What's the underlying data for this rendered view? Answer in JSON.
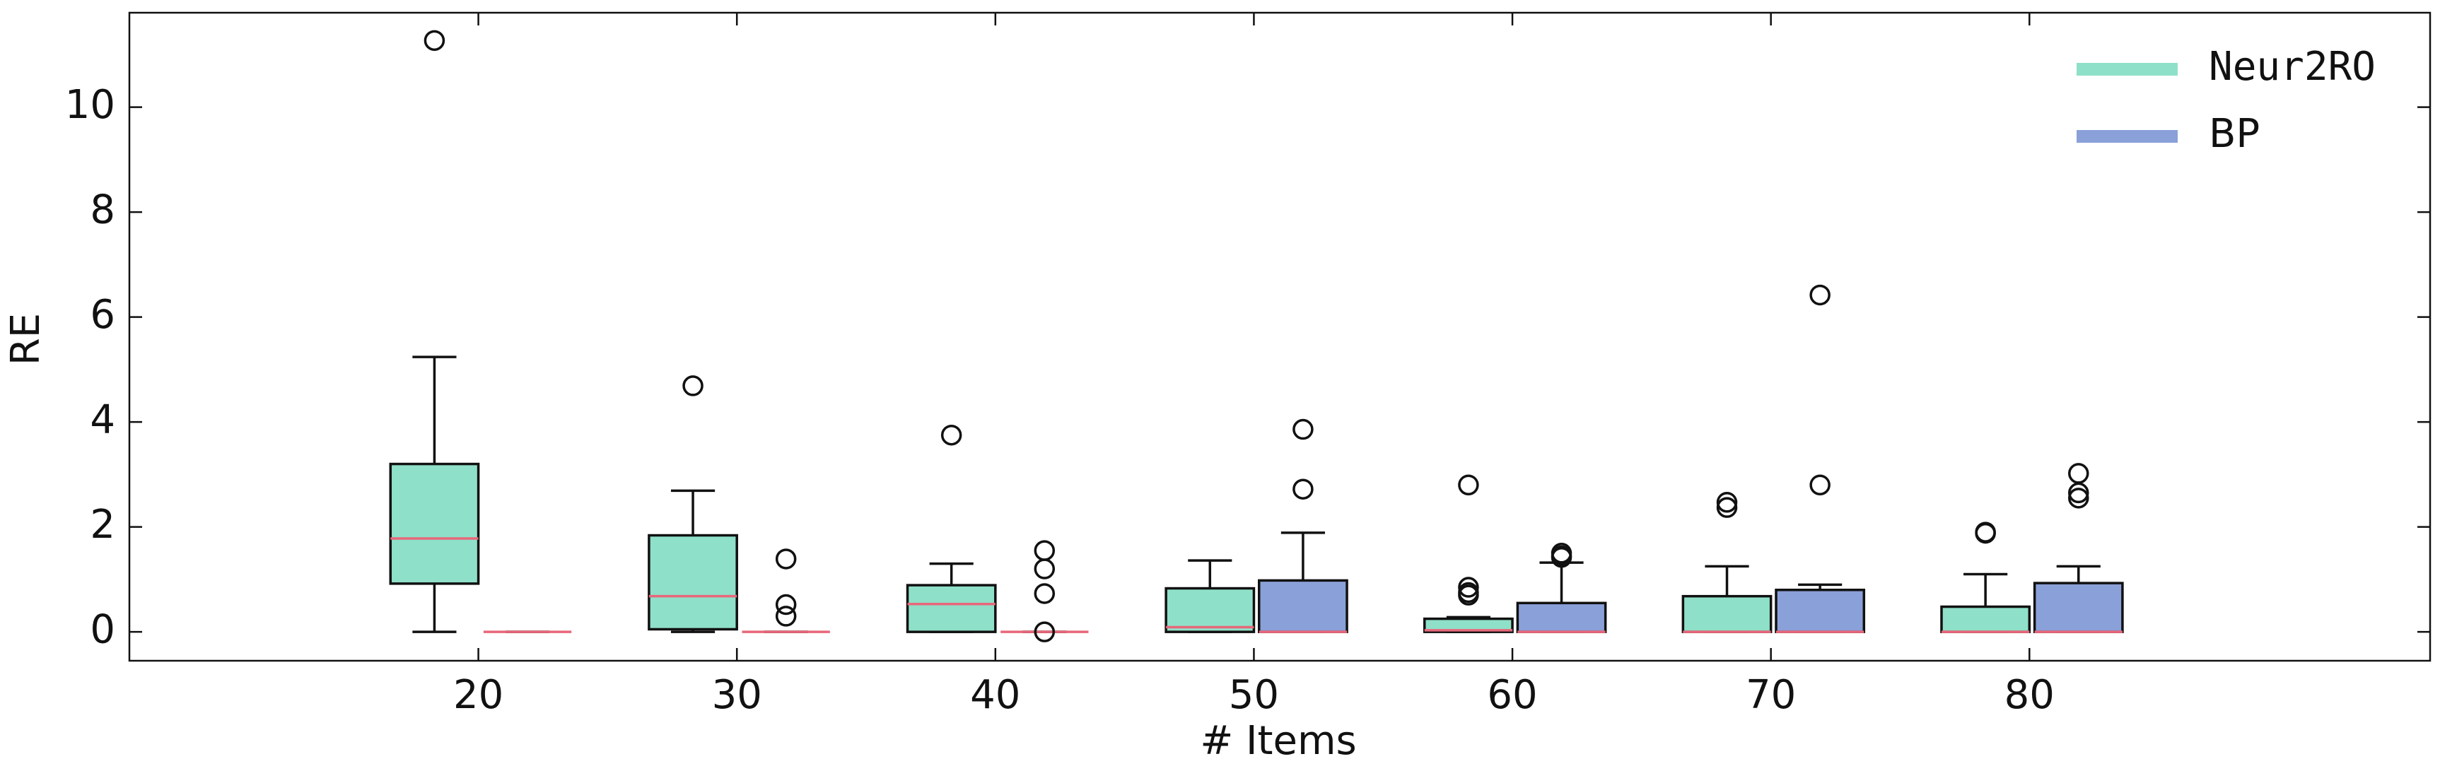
{
  "chart_data": {
    "type": "box",
    "xlabel": "# Items",
    "ylabel": "RE",
    "x": [
      20,
      30,
      40,
      50,
      60,
      70,
      80
    ],
    "xlim": [
      6.5,
      95.5
    ],
    "xticks": [
      20,
      30,
      40,
      50,
      60,
      70,
      80
    ],
    "ylim": [
      -0.55,
      11.8
    ],
    "yticks": [
      0,
      2,
      4,
      6,
      8,
      10
    ],
    "legend": "upper right",
    "median_color": "#e8677a",
    "series": [
      {
        "name": "Neur2RO",
        "color": "#8fe0c8",
        "boxes": [
          {
            "whislo": 0,
            "q1": 0.92,
            "med": 1.78,
            "q3": 3.2,
            "whishi": 5.24,
            "fliers": [
              11.27
            ]
          },
          {
            "whislo": 0,
            "q1": 0.05,
            "med": 0.68,
            "q3": 1.84,
            "whishi": 2.69,
            "fliers": [
              4.69
            ]
          },
          {
            "whislo": 0,
            "q1": 0,
            "med": 0.53,
            "q3": 0.89,
            "whishi": 1.3,
            "fliers": [
              3.75
            ]
          },
          {
            "whislo": 0,
            "q1": 0,
            "med": 0.09,
            "q3": 0.83,
            "whishi": 1.36,
            "fliers": []
          },
          {
            "whislo": 0,
            "q1": 0,
            "med": 0.03,
            "q3": 0.25,
            "whishi": 0.28,
            "fliers": [
              2.8,
              0.85,
              0.75,
              0.7
            ]
          },
          {
            "whislo": 0,
            "q1": 0,
            "med": 0,
            "q3": 0.68,
            "whishi": 1.25,
            "fliers": [
              2.47,
              2.37
            ]
          },
          {
            "whislo": 0,
            "q1": 0,
            "med": 0,
            "q3": 0.48,
            "whishi": 1.1,
            "fliers": [
              1.9,
              1.88
            ]
          }
        ]
      },
      {
        "name": "BP",
        "color": "#8aa0d8",
        "boxes": [
          {
            "whislo": 0,
            "q1": 0,
            "med": 0,
            "q3": 0,
            "whishi": 0,
            "fliers": []
          },
          {
            "whislo": 0,
            "q1": 0,
            "med": 0,
            "q3": 0,
            "whishi": 0,
            "fliers": [
              1.39,
              0.52,
              0.3
            ]
          },
          {
            "whislo": 0,
            "q1": 0,
            "med": 0,
            "q3": 0,
            "whishi": 0,
            "fliers": [
              1.55,
              1.2,
              0.73,
              0
            ]
          },
          {
            "whislo": 0,
            "q1": 0,
            "med": 0,
            "q3": 0.98,
            "whishi": 1.89,
            "fliers": [
              3.86,
              2.72
            ]
          },
          {
            "whislo": 0,
            "q1": 0,
            "med": 0,
            "q3": 0.55,
            "whishi": 1.32,
            "fliers": [
              1.5,
              1.45,
              1.42
            ]
          },
          {
            "whislo": 0,
            "q1": 0,
            "med": 0,
            "q3": 0.8,
            "whishi": 0.9,
            "fliers": [
              6.42,
              2.8
            ]
          },
          {
            "whislo": 0,
            "q1": 0,
            "med": 0,
            "q3": 0.93,
            "whishi": 1.25,
            "fliers": [
              3.02,
              2.65,
              2.55
            ]
          }
        ]
      }
    ]
  }
}
